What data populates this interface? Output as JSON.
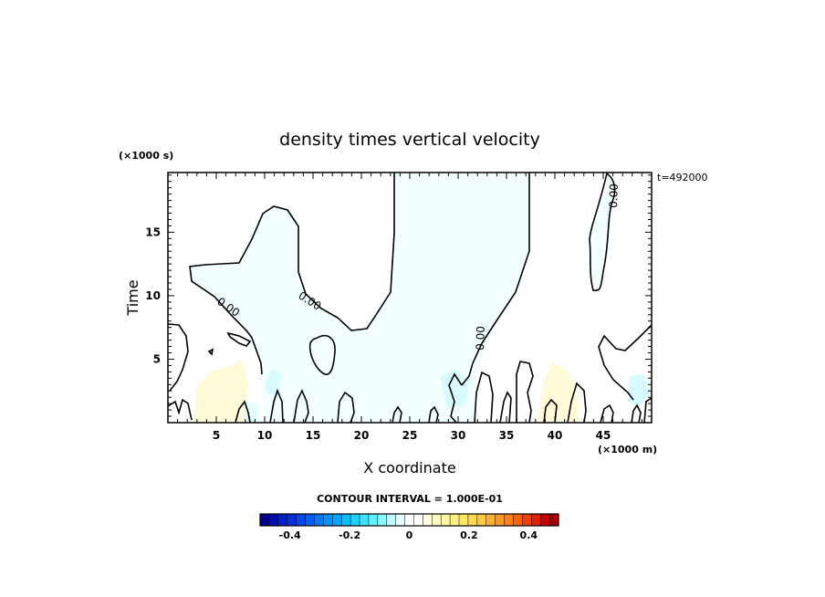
{
  "chart_data": {
    "type": "heatmap",
    "title": "density times vertical velocity",
    "xlabel": "X coordinate",
    "ylabel": "Time",
    "x_unit": "(×1000 m)",
    "y_unit": "(×1000 s)",
    "time_stamp": "t=492000",
    "xlim": [
      0,
      50
    ],
    "ylim": [
      0,
      19.7
    ],
    "x_ticks": [
      5,
      10,
      15,
      20,
      25,
      30,
      35,
      40,
      45
    ],
    "x_tick_labels": [
      "5",
      "10",
      "15",
      "20",
      "25",
      "30",
      "35",
      "40",
      "45"
    ],
    "y_ticks": [
      5,
      10,
      15
    ],
    "y_tick_labels": [
      "5",
      "10",
      "15"
    ],
    "contour_labels": [
      "0.00",
      "0.00",
      "0.00",
      "0.00"
    ],
    "contour_interval_text": "CONTOUR INTERVAL = 1.000E-01",
    "colorbar": {
      "range": [
        -0.5,
        0.5
      ],
      "ticks": [
        -0.4,
        -0.2,
        0,
        0.2,
        0.4
      ],
      "tick_labels": [
        "-0.4",
        "-0.2",
        "0",
        "0.2",
        "0.4"
      ],
      "colors": [
        "#000099",
        "#0010b0",
        "#0020c8",
        "#0030e0",
        "#0048f0",
        "#0060ff",
        "#0078ff",
        "#0090ff",
        "#00a8ff",
        "#00c0ff",
        "#20d0ff",
        "#40e0ff",
        "#60f0ff",
        "#90f8ff",
        "#c0fcff",
        "#e8ffff",
        "#ffffff",
        "#ffffff",
        "#ffffe0",
        "#fffcc0",
        "#fff8a0",
        "#fff080",
        "#ffe860",
        "#ffd850",
        "#ffc840",
        "#ffb030",
        "#ff9820",
        "#ff8010",
        "#ff6000",
        "#f04000",
        "#e02000",
        "#c80000",
        "#a00000"
      ]
    },
    "grid": false
  }
}
